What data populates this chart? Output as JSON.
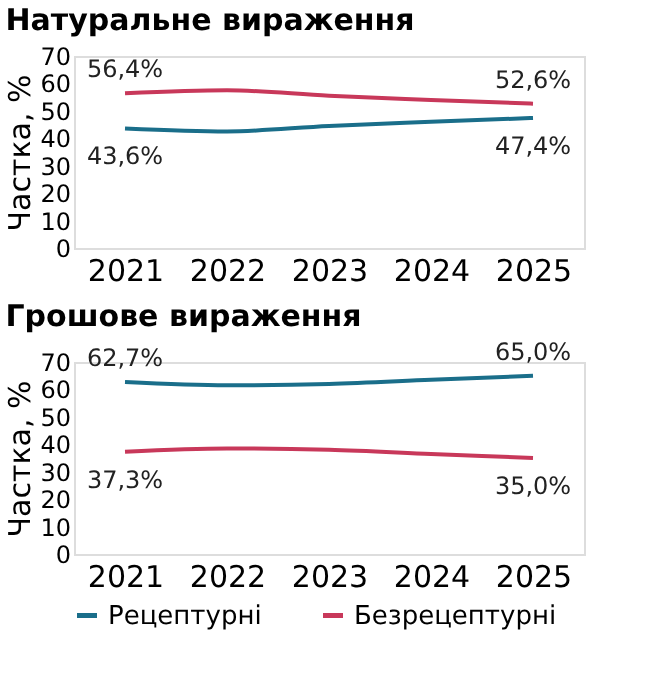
{
  "chart_data": [
    {
      "type": "line",
      "title": "Натуральне вираження",
      "ylabel": "Частка, %",
      "categories": [
        "2021",
        "2022",
        "2023",
        "2024",
        "2025"
      ],
      "ylim": [
        0,
        70
      ],
      "yticks": [
        0,
        10,
        20,
        30,
        40,
        50,
        60,
        70
      ],
      "grid": false,
      "legend": "bottom",
      "series": [
        {
          "name": "Рецептурні",
          "color": "#1a6e8a",
          "values": [
            43.6,
            42.5,
            44.5,
            46,
            47.4
          ],
          "value_labels": [
            "43,6%",
            null,
            null,
            null,
            "47,4%"
          ]
        },
        {
          "name": "Безрецептурні",
          "color": "#c8385a",
          "values": [
            56.4,
            57.5,
            55.5,
            54,
            52.6
          ],
          "value_labels": [
            "56,4%",
            null,
            null,
            null,
            "52,6%"
          ]
        }
      ]
    },
    {
      "type": "line",
      "title": "Грошове вираження",
      "ylabel": "Частка, %",
      "categories": [
        "2021",
        "2022",
        "2023",
        "2024",
        "2025"
      ],
      "ylim": [
        0,
        70
      ],
      "yticks": [
        0,
        10,
        20,
        30,
        40,
        50,
        60,
        70
      ],
      "grid": false,
      "legend": "bottom",
      "series": [
        {
          "name": "Рецептурні",
          "color": "#1a6e8a",
          "values": [
            62.7,
            61.5,
            62,
            63.5,
            65.0
          ],
          "value_labels": [
            "62,7%",
            null,
            null,
            null,
            "65,0%"
          ]
        },
        {
          "name": "Безрецептурні",
          "color": "#c8385a",
          "values": [
            37.3,
            38.5,
            38,
            36.5,
            35.0
          ],
          "value_labels": [
            "37,3%",
            null,
            null,
            null,
            "35,0%"
          ]
        }
      ]
    }
  ]
}
